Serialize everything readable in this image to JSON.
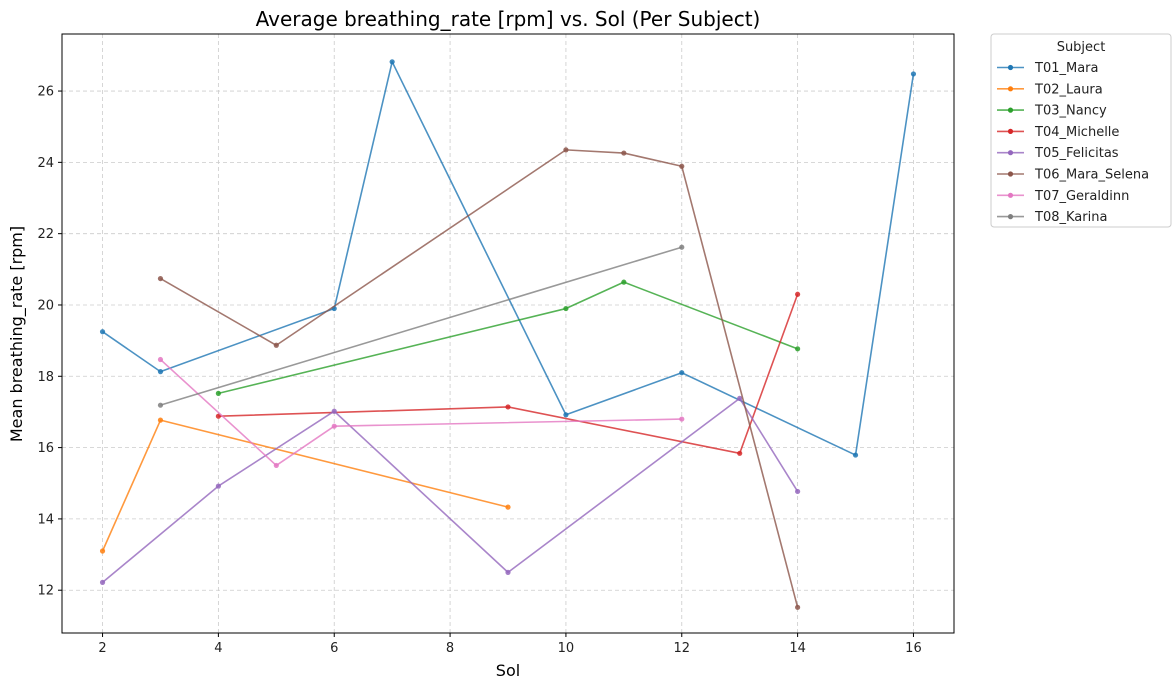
{
  "chart_data": {
    "type": "line",
    "title": "Average breathing_rate [rpm] vs. Sol (Per Subject)",
    "xlabel": "Sol",
    "ylabel": "Mean breathing_rate [rpm]",
    "xlim": [
      1.3,
      16.7
    ],
    "ylim": [
      10.8,
      27.6
    ],
    "xticks": [
      2,
      4,
      6,
      8,
      10,
      12,
      14,
      16
    ],
    "yticks": [
      12,
      14,
      16,
      18,
      20,
      22,
      24,
      26
    ],
    "grid": true,
    "legend": {
      "title": "Subject",
      "placement": "outside-top-right"
    },
    "series": [
      {
        "name": "T01_Mara",
        "color": "#1f77b4",
        "x": [
          2,
          3,
          6,
          7,
          10,
          12,
          15,
          16
        ],
        "y": [
          19.25,
          18.13,
          19.9,
          26.82,
          16.92,
          18.1,
          15.79,
          26.48
        ]
      },
      {
        "name": "T02_Laura",
        "color": "#ff7f0e",
        "x": [
          2,
          3,
          9
        ],
        "y": [
          13.1,
          16.77,
          14.33
        ]
      },
      {
        "name": "T03_Nancy",
        "color": "#2ca02c",
        "x": [
          4,
          10,
          11,
          14
        ],
        "y": [
          17.52,
          19.9,
          20.64,
          18.77
        ]
      },
      {
        "name": "T04_Michelle",
        "color": "#d62728",
        "x": [
          4,
          9,
          13,
          14
        ],
        "y": [
          16.88,
          17.14,
          15.84,
          20.3
        ]
      },
      {
        "name": "T05_Felicitas",
        "color": "#9467bd",
        "x": [
          2,
          4,
          6,
          9,
          13,
          14
        ],
        "y": [
          12.22,
          14.92,
          17.02,
          12.5,
          17.38,
          14.77
        ]
      },
      {
        "name": "T06_Mara_Selena",
        "color": "#8c564b",
        "x": [
          3,
          5,
          10,
          11,
          12,
          14
        ],
        "y": [
          20.74,
          18.87,
          24.35,
          24.26,
          23.89,
          11.52
        ]
      },
      {
        "name": "T07_Geraldinn",
        "color": "#e377c2",
        "x": [
          3,
          5,
          6,
          12
        ],
        "y": [
          18.47,
          15.5,
          16.6,
          16.8
        ]
      },
      {
        "name": "T08_Karina",
        "color": "#7f7f7f",
        "x": [
          3,
          12
        ],
        "y": [
          17.19,
          21.62
        ]
      }
    ]
  }
}
